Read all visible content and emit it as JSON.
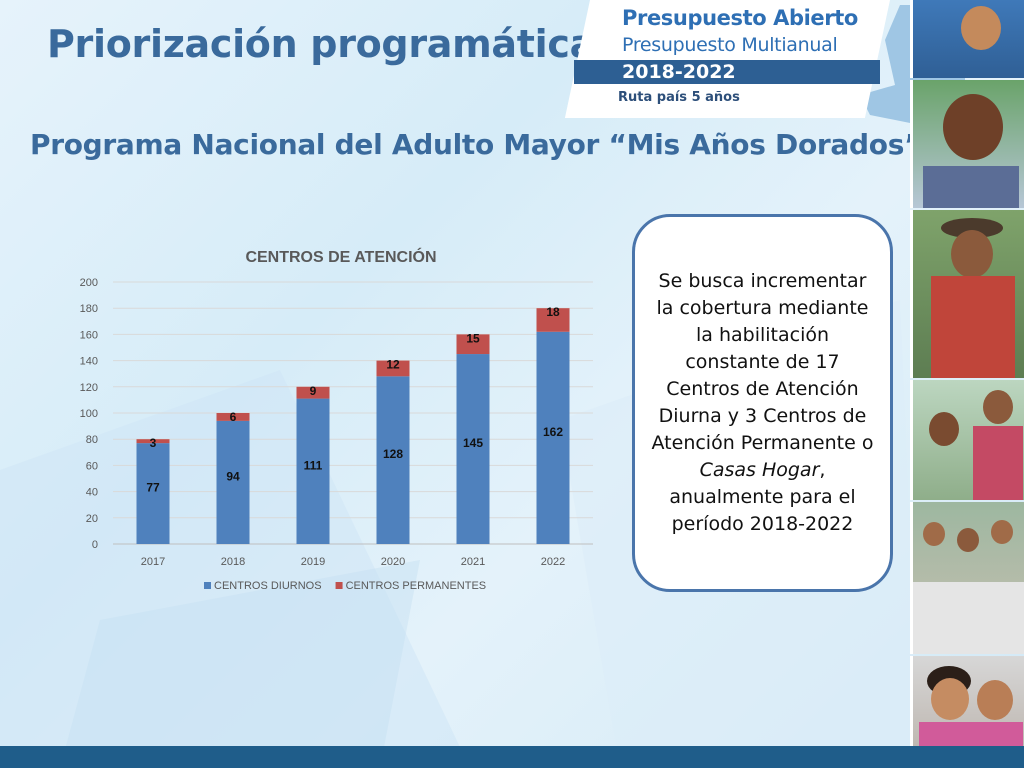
{
  "slide": {
    "title": "Priorización programática",
    "subtitle": "Programa Nacional del Adulto Mayor “Mis Años Dorados”"
  },
  "logo": {
    "title": "Presupuesto Abierto",
    "subtitle": "Presupuesto Multianual",
    "years": "2018-2022",
    "tagline": "Ruta país 5 años"
  },
  "callout": {
    "text_before": "Se busca incrementar la cobertura mediante la habilitación constante de 17 Centros de Atención Diurna y 3 Centros de Atención Permanente o ",
    "text_emphasis": "Casas Hogar",
    "text_after": ", anualmente para el período 2018-2022"
  },
  "colors": {
    "diurnos": "#4f81bd",
    "permanentes": "#c0504d",
    "title_blue": "#3a6a9c"
  },
  "chart_data": {
    "type": "bar",
    "stacked": true,
    "title": "CENTROS DE ATENCIÓN",
    "categories": [
      "2017",
      "2018",
      "2019",
      "2020",
      "2021",
      "2022"
    ],
    "series": [
      {
        "name": "CENTROS DIURNOS",
        "values": [
          77,
          94,
          111,
          128,
          145,
          162
        ]
      },
      {
        "name": "CENTROS PERMANENTES",
        "values": [
          3,
          6,
          9,
          12,
          15,
          18
        ]
      }
    ],
    "ylim": [
      0,
      200
    ],
    "yticks": [
      0,
      20,
      40,
      60,
      80,
      100,
      120,
      140,
      160,
      180,
      200
    ],
    "grid": true,
    "legend": "bottom"
  }
}
